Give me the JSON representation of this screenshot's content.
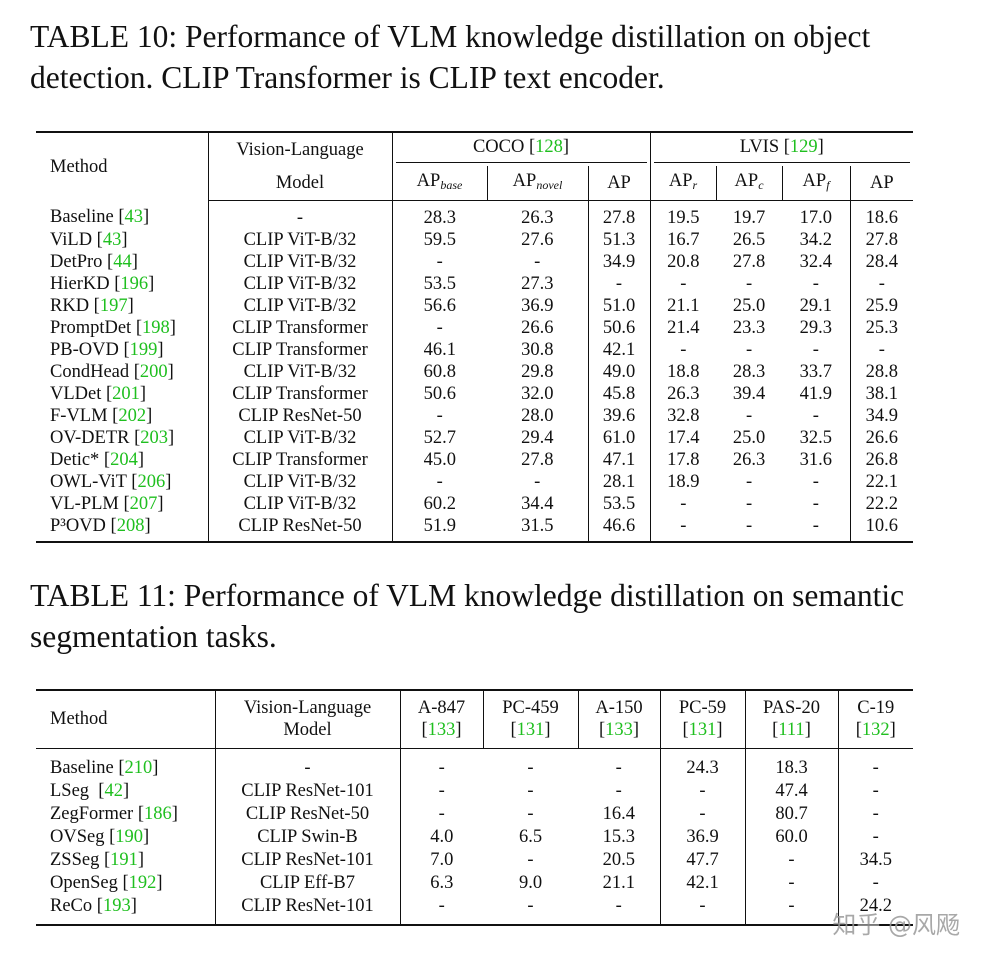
{
  "table_10": {
    "caption": "TABLE 10: Performance of VLM knowledge distillation on object detection. CLIP Transformer is CLIP text encoder.",
    "header": {
      "method": "Method",
      "model": [
        "Vision-Language",
        "Model"
      ],
      "groups": [
        "COCO [128]",
        "LVIS [129]"
      ],
      "columns": [
        {
          "text": "AP",
          "sub": "base"
        },
        {
          "text": "AP",
          "sub": "novel"
        },
        {
          "text": "AP"
        },
        {
          "text": "AP",
          "sub": "r"
        },
        {
          "text": "AP",
          "sub": "c"
        },
        {
          "text": "AP",
          "sub": "f"
        },
        {
          "text": "AP"
        }
      ]
    },
    "rows": [
      [
        "Baseline [43]",
        "-",
        "28.3",
        "26.3",
        "27.8",
        "19.5",
        "19.7",
        "17.0",
        "18.6"
      ],
      [
        "ViLD [43]",
        "CLIP ViT-B/32",
        "59.5",
        "27.6",
        "51.3",
        "16.7",
        "26.5",
        "34.2",
        "27.8"
      ],
      [
        "DetPro [44]",
        "CLIP ViT-B/32",
        "-",
        "-",
        "34.9",
        "20.8",
        "27.8",
        "32.4",
        "28.4"
      ],
      [
        "HierKD [196]",
        "CLIP ViT-B/32",
        "53.5",
        "27.3",
        "-",
        "-",
        "-",
        "-",
        "-"
      ],
      [
        "RKD [197]",
        "CLIP ViT-B/32",
        "56.6",
        "36.9",
        "51.0",
        "21.1",
        "25.0",
        "29.1",
        "25.9"
      ],
      [
        "PromptDet [198]",
        "CLIP Transformer",
        "-",
        "26.6",
        "50.6",
        "21.4",
        "23.3",
        "29.3",
        "25.3"
      ],
      [
        "PB-OVD [199]",
        "CLIP Transformer",
        "46.1",
        "30.8",
        "42.1",
        "-",
        "-",
        "-",
        "-"
      ],
      [
        "CondHead [200]",
        "CLIP ViT-B/32",
        "60.8",
        "29.8",
        "49.0",
        "18.8",
        "28.3",
        "33.7",
        "28.8"
      ],
      [
        "VLDet [201]",
        "CLIP Transformer",
        "50.6",
        "32.0",
        "45.8",
        "26.3",
        "39.4",
        "41.9",
        "38.1"
      ],
      [
        "F-VLM [202]",
        "CLIP ResNet-50",
        "-",
        "28.0",
        "39.6",
        "32.8",
        "-",
        "-",
        "34.9"
      ],
      [
        "OV-DETR [203]",
        "CLIP ViT-B/32",
        "52.7",
        "29.4",
        "61.0",
        "17.4",
        "25.0",
        "32.5",
        "26.6"
      ],
      [
        "Detic* [204]",
        "CLIP Transformer",
        "45.0",
        "27.8",
        "47.1",
        "17.8",
        "26.3",
        "31.6",
        "26.8"
      ],
      [
        "OWL-ViT [206]",
        "CLIP ViT-B/32",
        "-",
        "-",
        "28.1",
        "18.9",
        "-",
        "-",
        "22.1"
      ],
      [
        "VL-PLM [207]",
        "CLIP ViT-B/32",
        "60.2",
        "34.4",
        "53.5",
        "-",
        "-",
        "-",
        "22.2"
      ],
      [
        "P³OVD [208]",
        "CLIP ResNet-50",
        "51.9",
        "31.5",
        "46.6",
        "-",
        "-",
        "-",
        "10.6"
      ]
    ]
  },
  "table_11": {
    "caption": "TABLE 11: Performance of VLM knowledge distillation on semantic segmentation tasks.",
    "header": {
      "method": "Method",
      "model": [
        "Vision-Language",
        "Model"
      ],
      "columns": [
        {
          "name": "A-847",
          "ref": "[133]"
        },
        {
          "name": "PC-459",
          "ref": "[131]"
        },
        {
          "name": "A-150",
          "ref": "[133]"
        },
        {
          "name": "PC-59",
          "ref": "[131]"
        },
        {
          "name": "PAS-20",
          "ref": "[111]"
        },
        {
          "name": "C-19",
          "ref": "[132]"
        }
      ]
    },
    "rows": [
      [
        "Baseline [210]",
        "-",
        "-",
        "-",
        "-",
        "24.3",
        "18.3",
        "-"
      ],
      [
        "LSeg  [42]",
        "CLIP ResNet-101",
        "-",
        "-",
        "-",
        "-",
        "47.4",
        "-"
      ],
      [
        "ZegFormer [186]",
        "CLIP ResNet-50",
        "-",
        "-",
        "16.4",
        "-",
        "80.7",
        "-"
      ],
      [
        "OVSeg [190]",
        "CLIP Swin-B",
        "4.0",
        "6.5",
        "15.3",
        "36.9",
        "60.0",
        "-"
      ],
      [
        "ZSSeg [191]",
        "CLIP ResNet-101",
        "7.0",
        "-",
        "20.5",
        "47.7",
        "-",
        "34.5"
      ],
      [
        "OpenSeg [192]",
        "CLIP Eff-B7",
        "6.3",
        "9.0",
        "21.1",
        "42.1",
        "-",
        "-"
      ],
      [
        "ReCo [193]",
        "CLIP ResNet-101",
        "-",
        "-",
        "-",
        "-",
        "-",
        "24.2"
      ]
    ]
  },
  "watermark": "知乎 @风飏"
}
